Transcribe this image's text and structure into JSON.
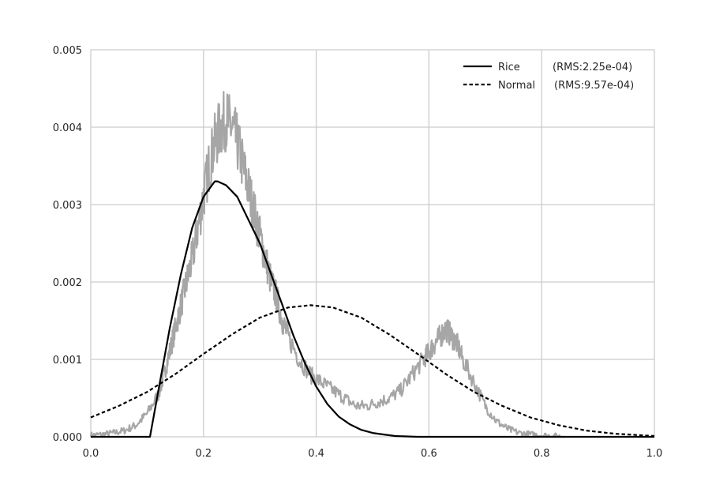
{
  "chart_data": {
    "type": "line",
    "title": "",
    "xlabel": "",
    "ylabel": "",
    "xlim": [
      0.0,
      1.0
    ],
    "ylim": [
      0.0,
      0.005
    ],
    "grid": true,
    "legend_position": "top-right",
    "x_ticks": [
      "0.0",
      "0.2",
      "0.4",
      "0.6",
      "0.8",
      "1.0"
    ],
    "y_ticks": [
      "0.000",
      "0.001",
      "0.002",
      "0.003",
      "0.004",
      "0.005"
    ],
    "colors": {
      "histogram": "#a6a6a6",
      "fit": "#000000",
      "grid": "#cccccc"
    },
    "series": [
      {
        "name": "",
        "style": "solid-gray-noisy",
        "x": [
          0.0,
          0.02,
          0.04,
          0.06,
          0.08,
          0.1,
          0.12,
          0.13,
          0.14,
          0.15,
          0.16,
          0.17,
          0.18,
          0.19,
          0.2,
          0.21,
          0.22,
          0.23,
          0.24,
          0.25,
          0.26,
          0.27,
          0.28,
          0.29,
          0.3,
          0.31,
          0.32,
          0.33,
          0.34,
          0.35,
          0.37,
          0.39,
          0.41,
          0.43,
          0.45,
          0.47,
          0.49,
          0.51,
          0.53,
          0.55,
          0.57,
          0.59,
          0.6,
          0.61,
          0.62,
          0.63,
          0.64,
          0.65,
          0.66,
          0.68,
          0.7,
          0.72,
          0.74,
          0.76,
          0.78,
          0.8,
          0.82,
          0.84
        ],
        "y": [
          2e-05,
          3e-05,
          5e-05,
          8e-05,
          0.00015,
          0.0003,
          0.00055,
          0.0008,
          0.0011,
          0.0014,
          0.0017,
          0.002,
          0.0023,
          0.0027,
          0.0031,
          0.0035,
          0.0038,
          0.004,
          0.0041,
          0.004,
          0.0038,
          0.0035,
          0.0032,
          0.0029,
          0.0026,
          0.0023,
          0.002,
          0.0018,
          0.0015,
          0.0013,
          0.001,
          0.0008,
          0.0007,
          0.0006,
          0.0005,
          0.0004,
          0.0004,
          0.00045,
          0.0005,
          0.0006,
          0.0008,
          0.001,
          0.0011,
          0.0012,
          0.0013,
          0.0014,
          0.0013,
          0.0012,
          0.001,
          0.0007,
          0.0004,
          0.0002,
          0.0001,
          5e-05,
          3e-05,
          2e-05,
          1e-05,
          0.0
        ]
      },
      {
        "name": "Rice",
        "legend_value": "(RMS:2.25e-04)",
        "style": "solid-black",
        "x": [
          0.0,
          0.105,
          0.12,
          0.14,
          0.16,
          0.18,
          0.2,
          0.22,
          0.225,
          0.24,
          0.26,
          0.28,
          0.3,
          0.32,
          0.34,
          0.36,
          0.38,
          0.4,
          0.42,
          0.44,
          0.46,
          0.48,
          0.5,
          0.52,
          0.54,
          0.56,
          0.58,
          0.6,
          1.0
        ],
        "y": [
          0.0,
          0.0,
          0.0006,
          0.0014,
          0.0021,
          0.0027,
          0.0031,
          0.0033,
          0.0033,
          0.00325,
          0.0031,
          0.0028,
          0.0025,
          0.0021,
          0.0017,
          0.0013,
          0.00095,
          0.00065,
          0.00042,
          0.00026,
          0.00016,
          9e-05,
          5e-05,
          3e-05,
          1e-05,
          5e-06,
          0.0,
          0.0,
          0.0
        ]
      },
      {
        "name": "Normal",
        "legend_value": "(RMS:9.57e-04)",
        "style": "dashed-black",
        "x": [
          0.0,
          0.05,
          0.1,
          0.15,
          0.2,
          0.25,
          0.3,
          0.35,
          0.39,
          0.43,
          0.48,
          0.53,
          0.58,
          0.63,
          0.68,
          0.73,
          0.78,
          0.83,
          0.88,
          0.93,
          1.0
        ],
        "y": [
          0.00025,
          0.0004,
          0.00058,
          0.00081,
          0.00107,
          0.00132,
          0.00154,
          0.00167,
          0.0017,
          0.00167,
          0.00154,
          0.00132,
          0.00107,
          0.00081,
          0.00058,
          0.0004,
          0.00025,
          0.00015,
          8e-05,
          4e-05,
          1e-05
        ]
      }
    ]
  }
}
